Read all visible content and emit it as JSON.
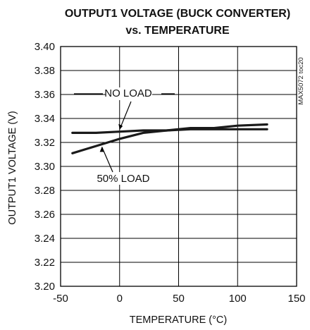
{
  "chart_data": {
    "type": "line",
    "title_line1": "OUTPUT1 VOLTAGE (BUCK CONVERTER)",
    "title_line2": "vs. TEMPERATURE",
    "xlabel": "TEMPERATURE (°C)",
    "ylabel": "OUTPUT1 VOLTAGE (V)",
    "xlim": [
      -50,
      150
    ],
    "ylim": [
      3.2,
      3.4
    ],
    "x_ticks": [
      "-50",
      "0",
      "50",
      "100",
      "150"
    ],
    "y_ticks": [
      "3.40",
      "3.38",
      "3.36",
      "3.34",
      "3.32",
      "3.30",
      "3.28",
      "3.26",
      "3.24",
      "3.22",
      "3.20"
    ],
    "grid": true,
    "watermark": "MAX5072 toc20",
    "series": [
      {
        "name": "NO LOAD",
        "x": [
          -40,
          -20,
          0,
          20,
          40,
          60,
          80,
          100,
          125
        ],
        "y": [
          3.328,
          3.328,
          3.329,
          3.33,
          3.33,
          3.331,
          3.331,
          3.331,
          3.331
        ]
      },
      {
        "name": "50% LOAD",
        "x": [
          -40,
          -20,
          0,
          20,
          40,
          60,
          80,
          100,
          125
        ],
        "y": [
          3.311,
          3.317,
          3.323,
          3.328,
          3.33,
          3.332,
          3.332,
          3.334,
          3.335
        ]
      }
    ],
    "annotations": [
      {
        "text": "NO LOAD",
        "points_to_x": 0,
        "points_to_y": 3.329
      },
      {
        "text": "50% LOAD",
        "points_to_x": -15,
        "points_to_y": 3.318
      }
    ]
  }
}
